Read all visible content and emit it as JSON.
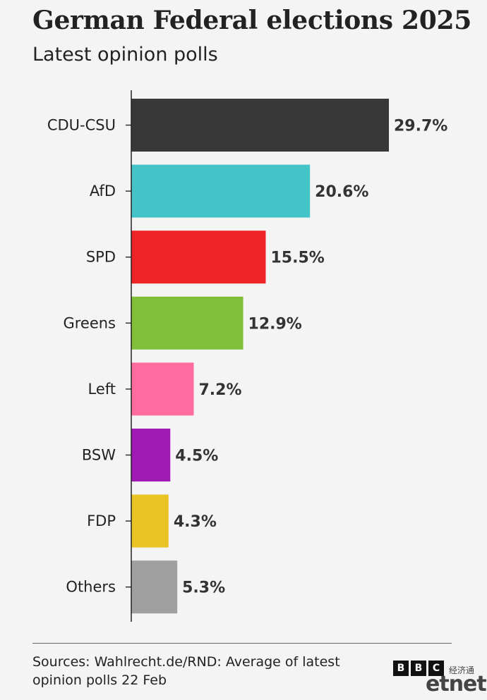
{
  "header": {
    "title": "German Federal elections 2025",
    "subtitle": "Latest opinion polls"
  },
  "chart_data": {
    "type": "bar",
    "orientation": "horizontal",
    "title": "German Federal elections 2025",
    "subtitle": "Latest opinion polls",
    "categories": [
      "CDU-CSU",
      "AfD",
      "SPD",
      "Greens",
      "Left",
      "BSW",
      "FDP",
      "Others"
    ],
    "values": [
      29.7,
      20.6,
      15.5,
      12.9,
      7.2,
      4.5,
      4.3,
      5.3
    ],
    "value_labels": [
      "29.7%",
      "20.6%",
      "15.5%",
      "12.9%",
      "7.2%",
      "4.5%",
      "4.3%",
      "5.3%"
    ],
    "colors": [
      "#383838",
      "#44c4c9",
      "#ee2229",
      "#7fbf3a",
      "#ff6b9e",
      "#a21ab5",
      "#eac424",
      "#a0a0a0"
    ],
    "xlim": [
      0,
      29.7
    ],
    "grid": false,
    "legend": "none"
  },
  "footer": {
    "source": "Sources: Wahlrecht.de/RND: Average of latest opinion polls 22 Feb",
    "bbc_letters": [
      "B",
      "B",
      "C"
    ],
    "watermark": "etnet",
    "watermark_cn": "经济通"
  }
}
